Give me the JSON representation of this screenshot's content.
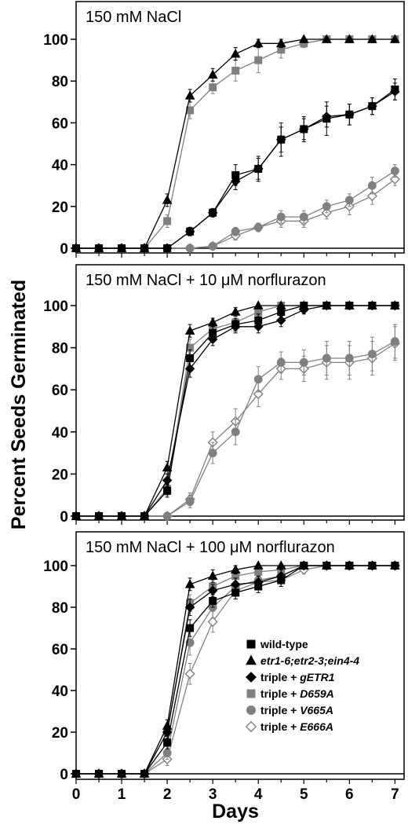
{
  "chart_data": {
    "type": "line",
    "xlabel": "Days",
    "ylabel": "Percent Seeds Germinated",
    "xlim": [
      0,
      7.2
    ],
    "ylim": [
      0,
      100
    ],
    "x_ticks": [
      0,
      1,
      2,
      3,
      4,
      5,
      6,
      7
    ],
    "y_ticks": [
      0,
      20,
      40,
      60,
      80,
      100
    ],
    "x": [
      0,
      0.5,
      1,
      1.5,
      2,
      2.5,
      3,
      3.5,
      4,
      4.5,
      5,
      5.5,
      6,
      6.5,
      7
    ],
    "legend": {
      "panel": 2,
      "placement": "lower-right",
      "entries": [
        {
          "prefix": "",
          "name": "wild-type"
        },
        {
          "prefix": "",
          "name": "etr1-6;etr2-3;ein4-4"
        },
        {
          "prefix": "triple + ",
          "name": "gETR1"
        },
        {
          "prefix": "triple + ",
          "name": "D659A"
        },
        {
          "prefix": "triple + ",
          "name": "V665A"
        },
        {
          "prefix": "triple + ",
          "name": "E666A"
        }
      ]
    },
    "series_styles": [
      {
        "marker": "square",
        "color": "#000000",
        "filled": true
      },
      {
        "marker": "triangle",
        "color": "#000000",
        "filled": true
      },
      {
        "marker": "diamond",
        "color": "#000000",
        "filled": true
      },
      {
        "marker": "square",
        "color": "#808080",
        "filled": true
      },
      {
        "marker": "circle",
        "color": "#808080",
        "filled": true
      },
      {
        "marker": "diamond",
        "color": "#808080",
        "filled": false
      }
    ],
    "panels": [
      {
        "title": "150 mM NaCl",
        "series": [
          {
            "values": [
              0,
              0,
              0,
              0,
              0,
              8,
              17,
              35,
              38,
              52,
              57,
              62,
              64,
              68,
              76
            ],
            "errors": [
              0,
              0,
              0,
              0,
              0,
              2,
              2,
              5,
              6,
              8,
              6,
              8,
              5,
              4,
              5
            ]
          },
          {
            "values": [
              0,
              0,
              0,
              0,
              23,
              73,
              83,
              93,
              98,
              98,
              100,
              100,
              100,
              100,
              100
            ],
            "errors": [
              0,
              0,
              0,
              0,
              3,
              3,
              3,
              3,
              2,
              2,
              0,
              0,
              0,
              0,
              0
            ]
          },
          {
            "values": [
              0,
              0,
              0,
              0,
              0,
              8,
              17,
              32,
              38,
              52,
              57,
              63,
              64,
              68,
              75
            ],
            "errors": [
              0,
              0,
              0,
              0,
              0,
              2,
              2,
              4,
              5,
              6,
              5,
              5,
              5,
              4,
              4
            ]
          },
          {
            "values": [
              0,
              0,
              0,
              0,
              13,
              66,
              77,
              85,
              90,
              95,
              98,
              100,
              100,
              100,
              100
            ],
            "errors": [
              0,
              0,
              0,
              0,
              3,
              4,
              3,
              5,
              6,
              4,
              2,
              0,
              0,
              0,
              0
            ]
          },
          {
            "values": [
              0,
              0,
              0,
              0,
              0,
              0,
              1,
              8,
              10,
              15,
              15,
              20,
              23,
              30,
              37
            ],
            "errors": [
              0,
              0,
              0,
              0,
              0,
              0,
              1,
              2,
              2,
              3,
              3,
              3,
              3,
              4,
              3
            ]
          },
          {
            "values": [
              0,
              0,
              0,
              0,
              0,
              0,
              1,
              6,
              10,
              13,
              13,
              17,
              20,
              25,
              33
            ],
            "errors": [
              0,
              0,
              0,
              0,
              0,
              0,
              1,
              2,
              2,
              3,
              3,
              3,
              4,
              4,
              3
            ]
          }
        ]
      },
      {
        "title": "150 mM NaCl + 10 μM norflurazon",
        "series": [
          {
            "values": [
              0,
              0,
              0,
              0,
              12,
              75,
              87,
              91,
              93,
              97,
              100,
              100,
              100,
              100,
              100
            ],
            "errors": [
              0,
              0,
              0,
              0,
              3,
              4,
              4,
              3,
              3,
              2,
              0,
              0,
              0,
              0,
              0
            ]
          },
          {
            "values": [
              0,
              0,
              0,
              0,
              23,
              88,
              92,
              97,
              100,
              100,
              100,
              100,
              100,
              100,
              100
            ],
            "errors": [
              0,
              0,
              0,
              0,
              3,
              3,
              2,
              2,
              0,
              0,
              0,
              0,
              0,
              0,
              0
            ]
          },
          {
            "values": [
              0,
              0,
              0,
              0,
              17,
              70,
              84,
              90,
              90,
              93,
              98,
              100,
              100,
              100,
              100
            ],
            "errors": [
              0,
              0,
              0,
              0,
              3,
              4,
              3,
              3,
              3,
              3,
              2,
              0,
              0,
              0,
              0
            ]
          },
          {
            "values": [
              0,
              0,
              0,
              0,
              13,
              80,
              89,
              92,
              97,
              100,
              100,
              100,
              100,
              100,
              100
            ],
            "errors": [
              0,
              0,
              0,
              0,
              3,
              4,
              3,
              3,
              2,
              0,
              0,
              0,
              0,
              0,
              0
            ]
          },
          {
            "values": [
              0,
              0,
              0,
              0,
              0,
              7,
              30,
              40,
              65,
              73,
              73,
              75,
              75,
              77,
              83
            ],
            "errors": [
              0,
              0,
              0,
              0,
              0,
              3,
              5,
              6,
              6,
              5,
              6,
              8,
              8,
              8,
              8
            ]
          },
          {
            "values": [
              0,
              0,
              0,
              0,
              0,
              8,
              35,
              45,
              58,
              70,
              70,
              73,
              73,
              75,
              82
            ],
            "errors": [
              0,
              0,
              0,
              0,
              0,
              3,
              5,
              6,
              6,
              5,
              6,
              8,
              8,
              8,
              8
            ]
          }
        ]
      },
      {
        "title": "150 mM NaCl + 100 μM norflurazon",
        "series": [
          {
            "values": [
              0,
              0,
              0,
              0,
              15,
              70,
              83,
              87,
              90,
              93,
              100,
              100,
              100,
              100,
              100
            ],
            "errors": [
              0,
              0,
              0,
              0,
              3,
              4,
              3,
              3,
              3,
              3,
              0,
              0,
              0,
              0,
              0
            ]
          },
          {
            "values": [
              0,
              0,
              0,
              0,
              23,
              91,
              95,
              98,
              100,
              100,
              100,
              100,
              100,
              100,
              100
            ],
            "errors": [
              0,
              0,
              0,
              0,
              3,
              3,
              3,
              2,
              0,
              0,
              0,
              0,
              0,
              0,
              0
            ]
          },
          {
            "values": [
              0,
              0,
              0,
              0,
              20,
              80,
              88,
              91,
              92,
              95,
              100,
              100,
              100,
              100,
              100
            ],
            "errors": [
              0,
              0,
              0,
              0,
              3,
              4,
              3,
              3,
              3,
              3,
              0,
              0,
              0,
              0,
              0
            ]
          },
          {
            "values": [
              0,
              0,
              0,
              0,
              20,
              82,
              90,
              95,
              97,
              98,
              100,
              100,
              100,
              100,
              100
            ],
            "errors": [
              0,
              0,
              0,
              0,
              3,
              4,
              3,
              3,
              2,
              2,
              0,
              0,
              0,
              0,
              0
            ]
          },
          {
            "values": [
              0,
              0,
              0,
              0,
              10,
              63,
              80,
              90,
              93,
              95,
              100,
              100,
              100,
              100,
              100
            ],
            "errors": [
              0,
              0,
              0,
              0,
              3,
              6,
              5,
              4,
              3,
              3,
              0,
              0,
              0,
              0,
              0
            ]
          },
          {
            "values": [
              0,
              0,
              0,
              0,
              7,
              48,
              73,
              88,
              92,
              93,
              98,
              100,
              100,
              100,
              100
            ],
            "errors": [
              0,
              0,
              0,
              0,
              3,
              5,
              5,
              4,
              3,
              3,
              2,
              0,
              0,
              0,
              0
            ]
          }
        ]
      }
    ]
  }
}
